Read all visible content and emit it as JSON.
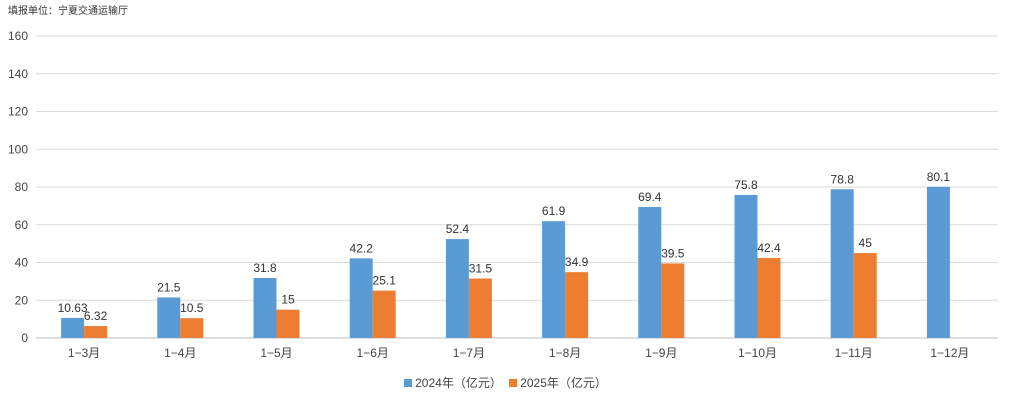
{
  "header": {
    "unit_note": "填报单位：宁夏交通运输厅"
  },
  "chart_data": {
    "type": "bar",
    "categories": [
      "1−3月",
      "1−4月",
      "1−5月",
      "1−6月",
      "1−7月",
      "1−8月",
      "1−9月",
      "1−10月",
      "1−11月",
      "1−12月"
    ],
    "series": [
      {
        "name": "2024年（亿元）",
        "color": "#5b9bd5",
        "values": [
          10.63,
          21.5,
          31.8,
          42.2,
          52.4,
          61.9,
          69.4,
          75.8,
          78.8,
          80.1
        ],
        "labels": [
          "10.63",
          "21.5",
          "31.8",
          "42.2",
          "52.4",
          "61.9",
          "69.4",
          "75.8",
          "78.8",
          "80.1"
        ]
      },
      {
        "name": "2025年（亿元）",
        "color": "#ed7d31",
        "values": [
          6.32,
          10.5,
          15,
          25.1,
          31.5,
          34.9,
          39.5,
          42.4,
          45,
          null
        ],
        "labels": [
          "6.32",
          "10.5",
          "15",
          "25.1",
          "31.5",
          "34.9",
          "39.5",
          "42.4",
          "45",
          ""
        ]
      }
    ],
    "ylim": [
      0,
      160
    ],
    "yticks": [
      0,
      20,
      40,
      60,
      80,
      100,
      120,
      140,
      160
    ],
    "ytick_labels": [
      "0",
      "20",
      "40",
      "60",
      "80",
      "100",
      "120",
      "140",
      "160"
    ],
    "grid": true,
    "legend_position": "bottom"
  }
}
